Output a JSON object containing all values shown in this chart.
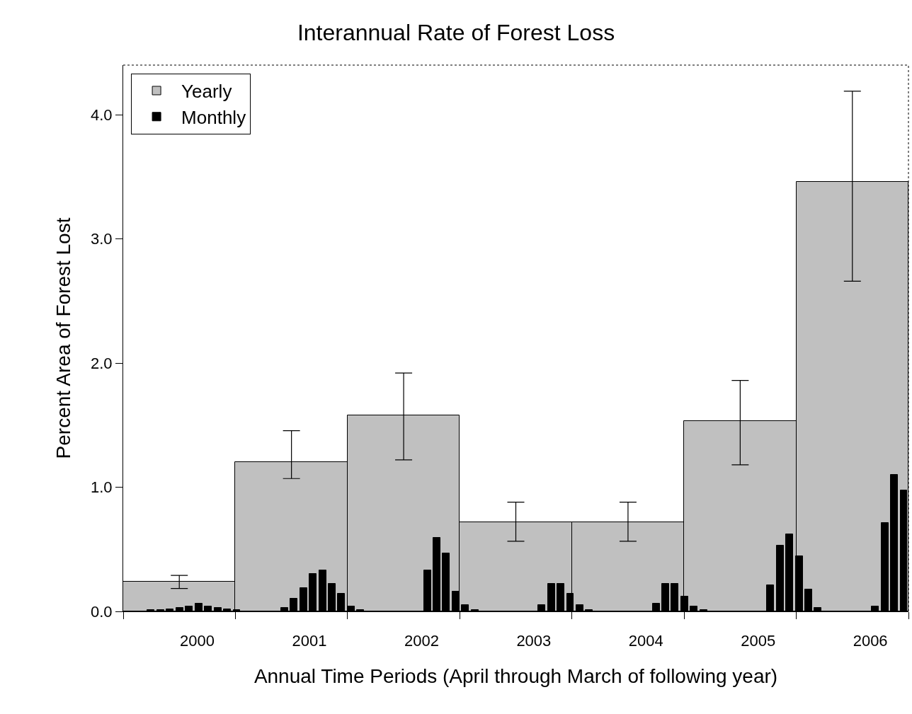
{
  "chart_data": {
    "type": "bar",
    "title": "Interannual Rate of Forest Loss",
    "xlabel": "Annual Time Periods (April through March of following year)",
    "ylabel": "Percent Area of Forest Lost",
    "series": [
      {
        "name": "Yearly",
        "color": "#c0c0c0",
        "x": [
          2000,
          2001,
          2002,
          2003,
          2004,
          2005,
          2006
        ],
        "values": [
          0.24,
          1.205,
          1.58,
          0.72,
          0.72,
          1.535,
          3.46
        ],
        "errors": [
          [
            0.185,
            0.29
          ],
          [
            1.07,
            1.455
          ],
          [
            1.22,
            1.92
          ],
          [
            0.565,
            0.88
          ],
          [
            0.565,
            0.88
          ],
          [
            1.18,
            1.86
          ],
          [
            2.66,
            4.19
          ]
        ]
      },
      {
        "name": "Monthly",
        "color": "#000000",
        "x": [
          1999.748,
          1999.833,
          1999.918,
          2000.003,
          2000.088,
          2000.173,
          2000.258,
          2000.343,
          2000.428,
          2000.513,
          2000.937,
          2001.022,
          2001.107,
          2001.192,
          2001.277,
          2001.362,
          2001.447,
          2001.532,
          2001.617,
          2002.212,
          2002.297,
          2002.381,
          2002.466,
          2002.551,
          2002.636,
          2003.231,
          2003.316,
          2003.401,
          2003.486,
          2003.571,
          2003.656,
          2004.25,
          2004.335,
          2004.42,
          2004.505,
          2004.59,
          2004.675,
          2005.27,
          2005.355,
          2005.44,
          2005.525,
          2005.61,
          2005.695,
          2006.204,
          2006.289,
          2006.374,
          2006.459
        ],
        "values": [
          0.01,
          0.01,
          0.015,
          0.03,
          0.04,
          0.065,
          0.04,
          0.03,
          0.015,
          0.01,
          0.03,
          0.1,
          0.19,
          0.3,
          0.33,
          0.22,
          0.14,
          0.04,
          0.013,
          0.33,
          0.59,
          0.47,
          0.16,
          0.05,
          0.013,
          0.05,
          0.22,
          0.22,
          0.14,
          0.05,
          0.013,
          0.065,
          0.22,
          0.22,
          0.12,
          0.04,
          0.01,
          0.21,
          0.53,
          0.62,
          0.445,
          0.175,
          0.03,
          0.04,
          0.71,
          1.1,
          0.975
        ]
      }
    ],
    "xlim": [
      1999.5,
      2006.5
    ],
    "xticks": [
      {
        "value": 1999.5,
        "label": null
      },
      {
        "value": 2000.5,
        "label": null
      },
      {
        "value": 2001.5,
        "label": null
      },
      {
        "value": 2002.5,
        "label": null
      },
      {
        "value": 2003.5,
        "label": null
      },
      {
        "value": 2004.5,
        "label": null
      },
      {
        "value": 2005.5,
        "label": null
      },
      {
        "value": 2006.5,
        "label": null
      },
      {
        "value": 2000.16,
        "label": "2000"
      },
      {
        "value": 2001.16,
        "label": "2001"
      },
      {
        "value": 2002.16,
        "label": "2002"
      },
      {
        "value": 2003.16,
        "label": "2003"
      },
      {
        "value": 2004.16,
        "label": "2004"
      },
      {
        "value": 2005.16,
        "label": "2005"
      },
      {
        "value": 2006.16,
        "label": "2006"
      }
    ],
    "ylim": [
      0,
      4.4
    ],
    "yticks": [
      {
        "value": 0,
        "label": "0.0"
      },
      {
        "value": 1,
        "label": "1.0"
      },
      {
        "value": 2,
        "label": "2.0"
      },
      {
        "value": 3,
        "label": "3.0"
      },
      {
        "value": 4,
        "label": "4.0"
      }
    ],
    "legend": "top left"
  }
}
